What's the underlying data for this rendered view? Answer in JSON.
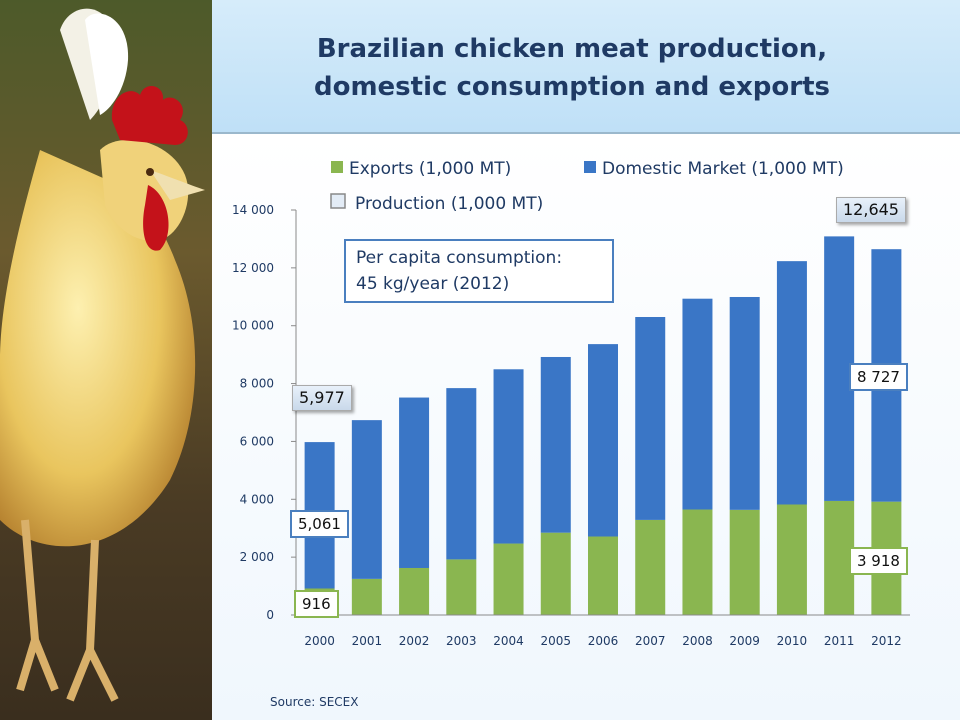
{
  "title_line1": "Brazilian chicken meat production,",
  "title_line2": "domestic consumption and exports",
  "annotation_line1": "Per capita consumption:",
  "annotation_line2": "45 kg/year (2012)",
  "source": "Source: SECEX",
  "labels": {
    "production_2000": "5,977",
    "production_2012": "12,645",
    "domestic_2000": "5,061",
    "domestic_2012": "8 727",
    "exports_2000": "916",
    "exports_2012": "3 918"
  },
  "colors": {
    "exports": "#8ab650",
    "domestic": "#3a76c6",
    "title": "#1f3a64"
  },
  "chart_data": {
    "type": "bar",
    "stacked": true,
    "categories": [
      "2000",
      "2001",
      "2002",
      "2003",
      "2004",
      "2005",
      "2006",
      "2007",
      "2008",
      "2009",
      "2010",
      "2011",
      "2012"
    ],
    "series": [
      {
        "name": "Exports (1,000 MT)",
        "values": [
          916,
          1249,
          1625,
          1922,
          2470,
          2846,
          2713,
          3287,
          3646,
          3635,
          3820,
          3943,
          3918
        ]
      },
      {
        "name": "Domestic Market (1,000 MT)",
        "values": [
          5061,
          5487,
          5892,
          5921,
          6024,
          6073,
          6651,
          7014,
          7288,
          7358,
          8412,
          9145,
          8727
        ]
      }
    ],
    "legend_extra": "Production (1,000 MT)",
    "ylim": [
      0,
      14000
    ],
    "yticks": [
      0,
      2000,
      4000,
      6000,
      8000,
      10000,
      12000,
      14000
    ],
    "ytick_labels": [
      "0",
      "2 000",
      "4 000",
      "6 000",
      "8 000",
      "10 000",
      "12 000",
      "14 000"
    ],
    "legend_position": "top"
  }
}
